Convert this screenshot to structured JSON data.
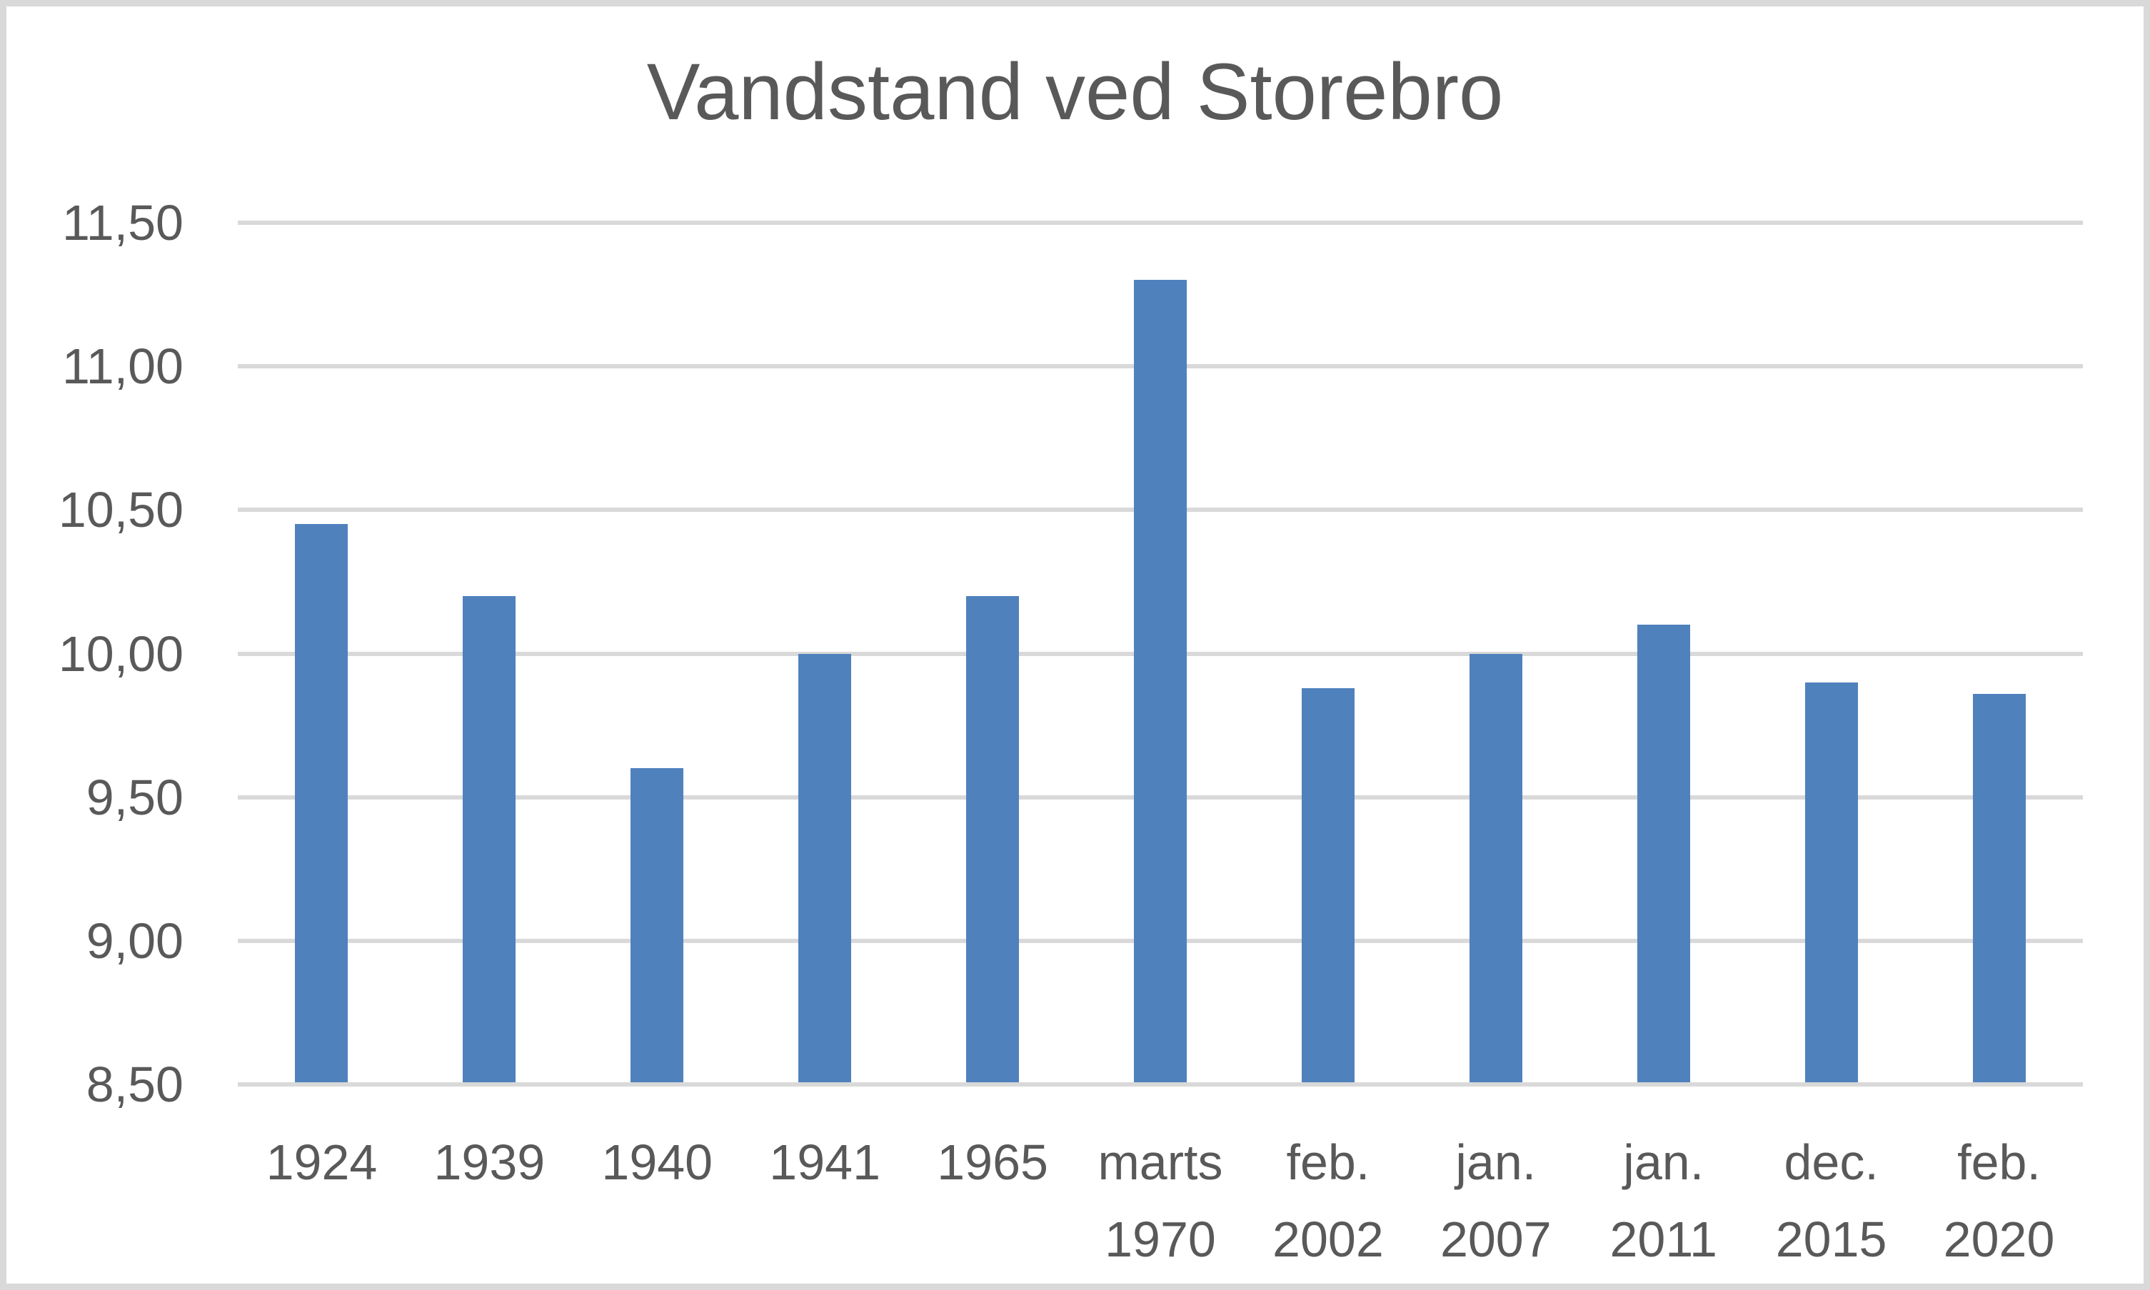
{
  "chart_data": {
    "type": "bar",
    "title": "Vandstand ved Storebro",
    "categories": [
      "1924",
      "1939",
      "1940",
      "1941",
      "1965",
      "marts 1970",
      "feb. 2002",
      "jan. 2007",
      "jan. 2011",
      "dec. 2015",
      "feb. 2020"
    ],
    "values": [
      10.45,
      10.2,
      9.6,
      10.0,
      10.2,
      11.3,
      9.88,
      10.0,
      10.1,
      9.9,
      9.86
    ],
    "ylim": [
      8.5,
      11.5
    ],
    "ytick_step": 0.5,
    "ytick_labels": [
      "11,50",
      "11,00",
      "10,50",
      "10,00",
      "9,50",
      "9,00",
      "8,50"
    ],
    "xlabel": "",
    "ylabel": "",
    "grid": true,
    "legend": false,
    "decimal_separator": ",",
    "colors": {
      "bar": "#4F81BD",
      "gridline": "#D9D9D9",
      "text": "#595959",
      "frame": "#D9D9D9",
      "background": "#FFFFFF"
    }
  }
}
